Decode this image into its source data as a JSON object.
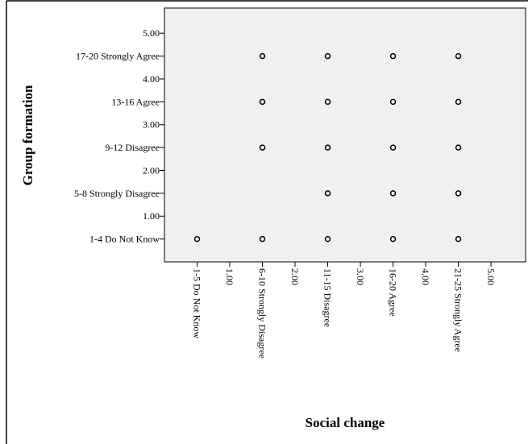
{
  "chart_data": {
    "type": "scatter",
    "x_label": "Social change",
    "y_label": "Group formation",
    "x": [
      1.5,
      2.5,
      3.5,
      4.5,
      1.5,
      2.5,
      3.5,
      4.5,
      1.5,
      2.5,
      3.5,
      4.5,
      2.5,
      3.5,
      4.5,
      0.5,
      1.5,
      2.5,
      3.5,
      4.5
    ],
    "y": [
      4.5,
      4.5,
      4.5,
      4.5,
      3.5,
      3.5,
      3.5,
      3.5,
      2.5,
      2.5,
      2.5,
      2.5,
      1.5,
      1.5,
      1.5,
      0.5,
      0.5,
      0.5,
      0.5,
      0.5
    ],
    "color": "#000000",
    "xlim": [
      0,
      5.53
    ],
    "ylim": [
      0,
      5.55
    ],
    "xticks": [
      {
        "value": 0.5,
        "label": "1-5 Do Not Know"
      },
      {
        "value": 1,
        "label": "1.00"
      },
      {
        "value": 1.5,
        "label": "6-10 Strongly Disagree"
      },
      {
        "value": 2,
        "label": "2.00"
      },
      {
        "value": 2.5,
        "label": "11-15 Disagree"
      },
      {
        "value": 3,
        "label": "3.00"
      },
      {
        "value": 3.5,
        "label": "16-20 Agree"
      },
      {
        "value": 4,
        "label": "4.00"
      },
      {
        "value": 4.5,
        "label": "21-25 Strongly Agree"
      },
      {
        "value": 5,
        "label": "5.00"
      }
    ],
    "yticks": [
      {
        "value": 0.5,
        "label": "1-4 Do Not Know"
      },
      {
        "value": 1,
        "label": "1.00"
      },
      {
        "value": 1.5,
        "label": "5-8 Strongly Disagree"
      },
      {
        "value": 2,
        "label": "2.00"
      },
      {
        "value": 2.5,
        "label": "9-12 Disagree"
      },
      {
        "value": 3,
        "label": "3.00"
      },
      {
        "value": 3.5,
        "label": "13-16 Agree"
      },
      {
        "value": 4,
        "label": "4.00"
      },
      {
        "value": 4.5,
        "label": "17-20 Strongly Agree"
      },
      {
        "value": 5,
        "label": "5.00"
      }
    ]
  }
}
